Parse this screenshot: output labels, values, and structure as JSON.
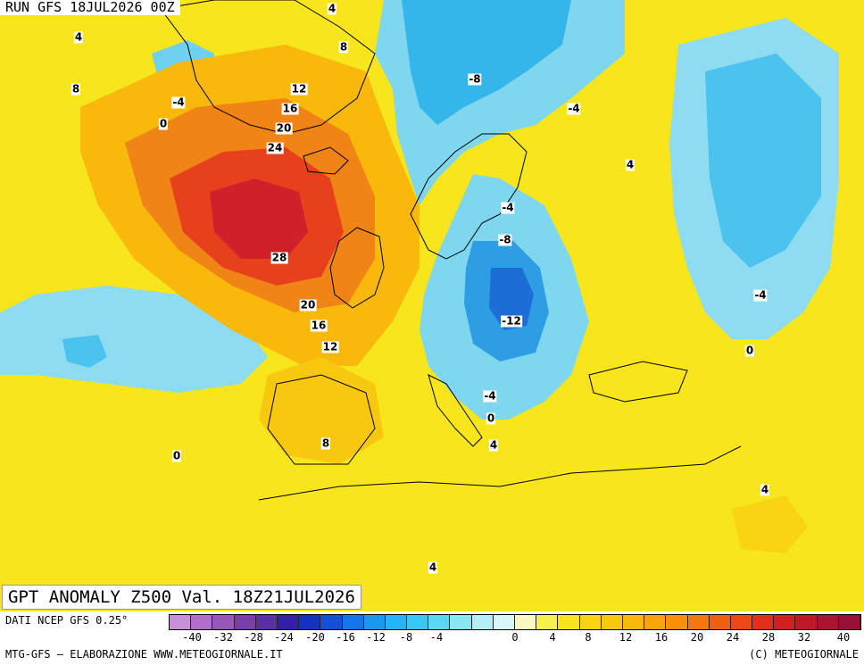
{
  "header": {
    "run": "RUN GFS 18JUL2026 00Z"
  },
  "map": {
    "title": "GPT ANOMALY Z500 Val. 18Z21JUL2026",
    "background_color": "#f7e61b",
    "contour_labels": [
      "4",
      "4",
      "8",
      "8",
      "-4",
      "0",
      "12",
      "16",
      "20",
      "24",
      "28",
      "20",
      "16",
      "12",
      "-8",
      "-4",
      "4",
      "-4",
      "-8",
      "-12",
      "-4",
      "-4",
      "0",
      "8",
      "4",
      "0",
      "0",
      "4",
      "4"
    ]
  },
  "footer": {
    "source": "DATI NCEP GFS 0.25°",
    "credit": "MTG-GFS – ELABORAZIONE WWW.METEOGIORNALE.IT",
    "copyright": "(C) METEOGIORNALE"
  },
  "scale": {
    "tick_labels": [
      "-40",
      "-32",
      "-28",
      "-24",
      "-20",
      "-16",
      "-12",
      "-8",
      "-4",
      "0",
      "4",
      "8",
      "12",
      "16",
      "20",
      "24",
      "28",
      "32",
      "40"
    ],
    "colors": [
      "#c890d8",
      "#b070c8",
      "#9858b8",
      "#7a3ea8",
      "#5a30a0",
      "#3320a8",
      "#1830c0",
      "#1250d8",
      "#1676e8",
      "#1a98f0",
      "#22b4f4",
      "#38c8f2",
      "#5ad8f2",
      "#8ae4f4",
      "#b4eef6",
      "#d8f6f8",
      "#f8f8c0",
      "#f8f050",
      "#f8e41e",
      "#f8d414",
      "#f8c80e",
      "#f8b80c",
      "#f8a40c",
      "#f8900c",
      "#f47810",
      "#f06014",
      "#ec4818",
      "#e0301a",
      "#d02020",
      "#bc1a28",
      "#a81430",
      "#981038"
    ]
  }
}
